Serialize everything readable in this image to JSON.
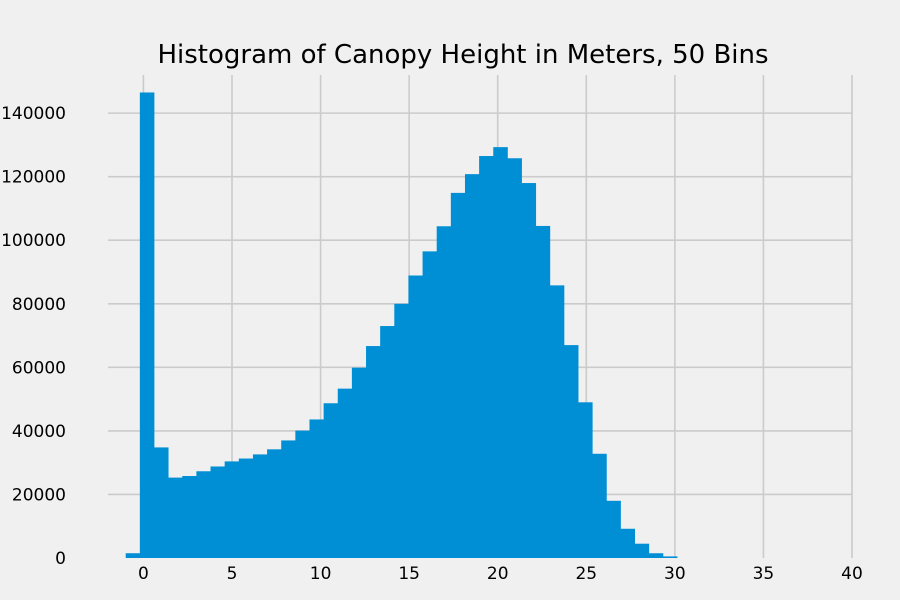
{
  "chart_data": {
    "type": "bar",
    "title": "Histogram of Canopy Height in Meters, 50 Bins",
    "xlabel": "",
    "ylabel": "",
    "bin_width": 0.798,
    "bin_edges_start": -1.0,
    "values": [
      1500,
      146500,
      34800,
      25300,
      25800,
      27300,
      28800,
      30400,
      31300,
      32600,
      34200,
      37000,
      40100,
      43600,
      48700,
      53300,
      59900,
      66700,
      73000,
      80000,
      88900,
      96500,
      104400,
      114900,
      120800,
      126500,
      129300,
      125800,
      118000,
      104500,
      85800,
      67000,
      49000,
      32800,
      18000,
      9200,
      4500,
      1500,
      500,
      0,
      0,
      0,
      0,
      0,
      0,
      0,
      0,
      0,
      0,
      0
    ],
    "xlim": [
      -2,
      40
    ],
    "ylim": [
      0,
      152000
    ],
    "x_ticks": [
      "0",
      "5",
      "10",
      "15",
      "20",
      "25",
      "30",
      "35",
      "40"
    ],
    "x_tick_values": [
      0,
      5,
      10,
      15,
      20,
      25,
      30,
      35,
      40
    ],
    "y_ticks": [
      "0",
      "20000",
      "40000",
      "60000",
      "80000",
      "100000",
      "120000",
      "140000"
    ],
    "y_tick_values": [
      0,
      20000,
      40000,
      60000,
      80000,
      100000,
      120000,
      140000
    ],
    "grid": true,
    "bar_color": "#008fd5",
    "background_color": "#f0f0f0",
    "grid_color": "#cbcbcb"
  }
}
